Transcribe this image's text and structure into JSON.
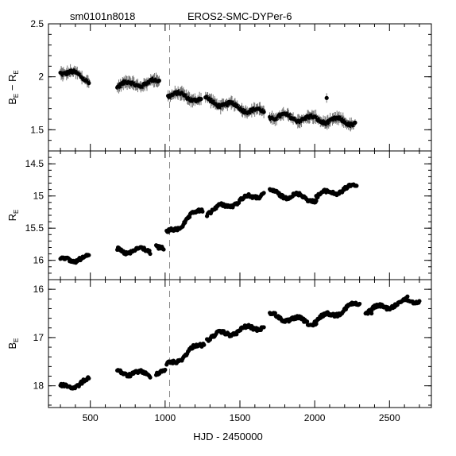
{
  "header": {
    "star_id": "sm0101n8018",
    "object_name": "EROS2-SMC-DYPer-6"
  },
  "chart_data": {
    "type": "scatter",
    "xlabel": "HJD - 2450000",
    "xlim": [
      220,
      2780
    ],
    "xticks": [
      500,
      1000,
      1500,
      2000,
      2500
    ],
    "reference_line_x": 1030,
    "panels": [
      {
        "id": "color",
        "ylabel_main": "B",
        "ylabel_main_sub": "E",
        "ylabel_op": " − ",
        "ylabel_second": "R",
        "ylabel_second_sub": "E",
        "ylim": [
          1.3,
          2.5
        ],
        "inverted": false,
        "yticks": [
          1.5,
          2,
          2.5
        ],
        "error_bars": true,
        "segments": [
          {
            "x": [
              300,
              490
            ],
            "y": [
              2.06,
              1.98
            ]
          },
          {
            "x": [
              680,
              960
            ],
            "y": [
              1.92,
              1.95
            ]
          },
          {
            "x": [
              1020,
              1240
            ],
            "y": [
              1.84,
              1.79
            ]
          },
          {
            "x": [
              1270,
              1660
            ],
            "y": [
              1.78,
              1.66
            ]
          },
          {
            "x": [
              1700,
              2270
            ],
            "y": [
              1.63,
              1.57
            ]
          }
        ],
        "extra_points": [
          {
            "x": 2080,
            "y": 1.8
          }
        ]
      },
      {
        "id": "red",
        "ylabel_main": "R",
        "ylabel_main_sub": "E",
        "ylim": [
          14.3,
          16.3
        ],
        "inverted": true,
        "yticks": [
          14.5,
          15,
          15.5,
          16
        ],
        "error_bars": false,
        "segments": [
          {
            "x": [
              300,
              490
            ],
            "y": [
              16.0,
              15.95
            ]
          },
          {
            "x": [
              680,
              900
            ],
            "y": [
              15.85,
              15.85
            ]
          },
          {
            "x": [
              940,
              990
            ],
            "y": [
              15.75,
              15.85
            ]
          },
          {
            "x": [
              1010,
              1250
            ],
            "y": [
              15.6,
              15.2
            ]
          },
          {
            "x": [
              1280,
              1660
            ],
            "y": [
              15.25,
              14.95
            ]
          },
          {
            "x": [
              1700,
              2010
            ],
            "y": [
              14.95,
              15.05
            ]
          },
          {
            "x": [
              2010,
              2280
            ],
            "y": [
              15.0,
              14.85
            ]
          }
        ],
        "extra_points": []
      },
      {
        "id": "blue",
        "ylabel_main": "B",
        "ylabel_main_sub": "E",
        "ylim": [
          15.8,
          18.45
        ],
        "inverted": true,
        "yticks": [
          16,
          17,
          18
        ],
        "error_bars": false,
        "segments": [
          {
            "x": [
              300,
              490
            ],
            "y": [
              18.05,
              17.9
            ]
          },
          {
            "x": [
              680,
              900
            ],
            "y": [
              17.7,
              17.78
            ]
          },
          {
            "x": [
              940,
              1000
            ],
            "y": [
              17.7,
              17.72
            ]
          },
          {
            "x": [
              1010,
              1260
            ],
            "y": [
              17.6,
              17.1
            ]
          },
          {
            "x": [
              1280,
              1660
            ],
            "y": [
              17.0,
              16.75
            ]
          },
          {
            "x": [
              1700,
              2010
            ],
            "y": [
              16.55,
              16.7
            ]
          },
          {
            "x": [
              2000,
              2300
            ],
            "y": [
              16.65,
              16.3
            ]
          },
          {
            "x": [
              2340,
              2700
            ],
            "y": [
              16.45,
              16.2
            ]
          }
        ],
        "extra_points": [
          {
            "x": 2380,
            "y": 16.5
          },
          {
            "x": 2620,
            "y": 16.15
          }
        ]
      }
    ]
  }
}
